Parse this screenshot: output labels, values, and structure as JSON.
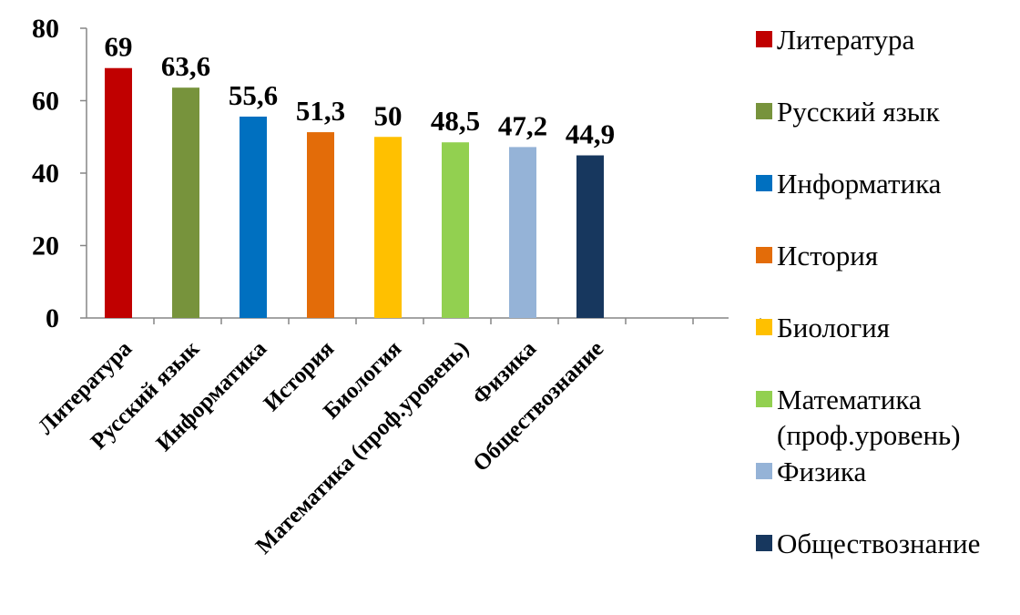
{
  "chart_data": {
    "type": "bar",
    "categories": [
      "Литература",
      "Русский язык",
      "Информатика",
      "История",
      "Биология",
      "Математика  (проф.уровень)",
      "Физика",
      "Обществознание"
    ],
    "values": [
      69,
      63.6,
      55.6,
      51.3,
      50,
      48.5,
      47.2,
      44.9
    ],
    "value_labels": [
      "69",
      "63,6",
      "55,6",
      "51,3",
      "50",
      "48,5",
      "47,2",
      "44,9"
    ],
    "colors": [
      "#C00000",
      "#77933C",
      "#0070C0",
      "#E36C09",
      "#FFC000",
      "#92D050",
      "#95B3D7",
      "#17375E"
    ],
    "yticks": [
      "0",
      "20",
      "40",
      "60",
      "80"
    ],
    "ytick_values": [
      0,
      20,
      40,
      60,
      80
    ],
    "ylim": [
      0,
      80
    ],
    "title": "",
    "xlabel": "",
    "ylabel": "",
    "grid": false,
    "legend": {
      "position": "right",
      "entries": [
        {
          "lines": [
            "Литература"
          ],
          "color": "#C00000"
        },
        {
          "lines": [
            "Русский язык"
          ],
          "color": "#77933C"
        },
        {
          "lines": [
            "Информатика"
          ],
          "color": "#0070C0"
        },
        {
          "lines": [
            "История"
          ],
          "color": "#E36C09"
        },
        {
          "lines": [
            "Биология"
          ],
          "color": "#FFC000"
        },
        {
          "lines": [
            "Математика",
            "(проф.уровень)"
          ],
          "color": "#92D050"
        },
        {
          "lines": [
            "Физика"
          ],
          "color": "#95B3D7"
        },
        {
          "lines": [
            "Обществознание"
          ],
          "color": "#17375E"
        }
      ]
    }
  }
}
